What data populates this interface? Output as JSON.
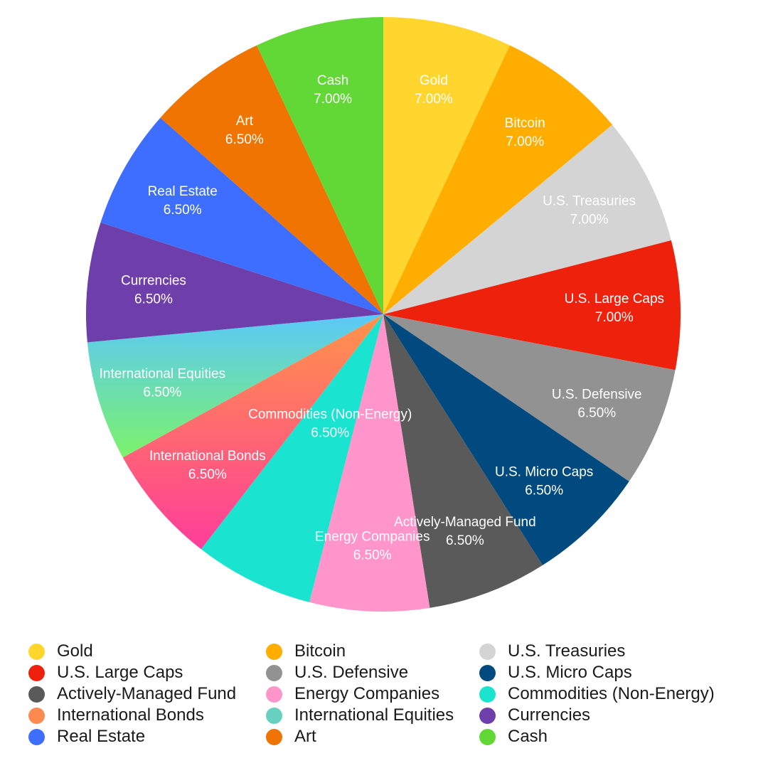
{
  "chart_data": {
    "type": "pie",
    "title": "",
    "unit": "%",
    "legend_position": "bottom",
    "slices": [
      {
        "label": "Gold",
        "value": 7.0,
        "display": "7.00%",
        "color": "#FFD52E"
      },
      {
        "label": "Bitcoin",
        "value": 7.0,
        "display": "7.00%",
        "color": "#FFAE00"
      },
      {
        "label": "U.S. Treasuries",
        "value": 7.0,
        "display": "7.00%",
        "color": "#D4D4D4"
      },
      {
        "label": "U.S. Large Caps",
        "value": 7.0,
        "display": "7.00%",
        "color": "#EE220C"
      },
      {
        "label": "U.S. Defensive",
        "value": 6.5,
        "display": "6.50%",
        "color": "#929292"
      },
      {
        "label": "U.S. Micro Caps",
        "value": 6.5,
        "display": "6.50%",
        "color": "#004A7F"
      },
      {
        "label": "Actively-Managed Fund",
        "value": 6.5,
        "display": "6.50%",
        "color": "#5A5A5A"
      },
      {
        "label": "Energy Companies",
        "value": 6.5,
        "display": "6.50%",
        "color": "#FF95CA"
      },
      {
        "label": "Commodities (Non-Energy)",
        "value": 6.5,
        "display": "6.50%",
        "color": "#1AE3CF"
      },
      {
        "label": "International Bonds",
        "value": 6.5,
        "display": "6.50%",
        "color": "#FF6B6B",
        "gradient": [
          "#FF9448",
          "#FF3D9A"
        ]
      },
      {
        "label": "International Equities",
        "value": 6.5,
        "display": "6.50%",
        "color": "#6ACFD8",
        "gradient": [
          "#5AC8FA",
          "#7CF26A"
        ]
      },
      {
        "label": "Currencies",
        "value": 6.5,
        "display": "6.50%",
        "color": "#6E3FAA"
      },
      {
        "label": "Real Estate",
        "value": 6.5,
        "display": "6.50%",
        "color": "#3E6EFF"
      },
      {
        "label": "Art",
        "value": 6.5,
        "display": "6.50%",
        "color": "#EF7402"
      },
      {
        "label": "Cash",
        "value": 7.0,
        "display": "7.00%",
        "color": "#61D836"
      }
    ],
    "legend_order": [
      "Gold",
      "Bitcoin",
      "U.S. Treasuries",
      "U.S. Large Caps",
      "U.S. Defensive",
      "U.S. Micro Caps",
      "Actively-Managed Fund",
      "Energy Companies",
      "Commodities (Non-Energy)",
      "International Bonds",
      "International Equities",
      "Currencies",
      "Real Estate",
      "Art",
      "Cash"
    ],
    "legend_colors": {
      "Gold": "#FFD52E",
      "Bitcoin": "#FFAE00",
      "U.S. Treasuries": "#D4D4D4",
      "U.S. Large Caps": "#EE220C",
      "U.S. Defensive": "#929292",
      "U.S. Micro Caps": "#004A7F",
      "Actively-Managed Fund": "#5A5A5A",
      "Energy Companies": "#FF95CA",
      "Commodities (Non-Energy)": "#1AE3CF",
      "International Bonds": "#FF8A50",
      "International Equities": "#68D0C0",
      "Currencies": "#6E3FAA",
      "Real Estate": "#3E6EFF",
      "Art": "#EF7402",
      "Cash": "#61D836"
    }
  }
}
